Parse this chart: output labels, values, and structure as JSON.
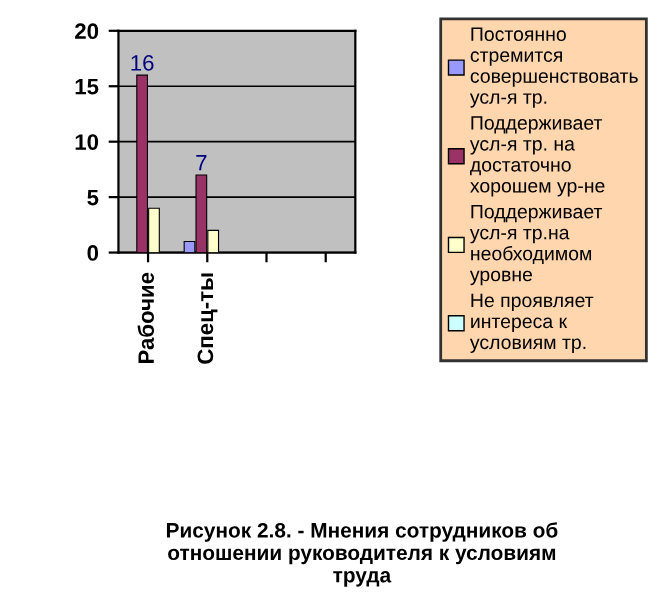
{
  "chart_data": {
    "type": "bar",
    "categories": [
      "Рабочие",
      "Спец-ты",
      null,
      null
    ],
    "series": [
      {
        "name": "Постоянно стремится совершенствовать усл-я тр.",
        "color": "#9999ff",
        "values": [
          0,
          1,
          null,
          null
        ]
      },
      {
        "name": "Поддерживает усл-я тр. на достаточно хорошем ур-не",
        "color": "#993366",
        "values": [
          16,
          7,
          null,
          null
        ],
        "value_labels": [
          "16",
          "7",
          null,
          null
        ]
      },
      {
        "name": "Поддерживает усл-я тр.на необходимом уровне",
        "color": "#ffffcc",
        "values": [
          4,
          2,
          null,
          null
        ]
      },
      {
        "name": "Не проявляет интереса к условиям тр.",
        "color": "#ccffff",
        "values": [
          0,
          0,
          null,
          null
        ]
      }
    ],
    "ylim": [
      0,
      20
    ],
    "yticks": [
      0,
      5,
      10,
      15,
      20
    ],
    "grid": "y",
    "legend": "right",
    "annotations": [
      "Рисунок 2.8. - Мнения сотрудников об отношении руководителя к условиям труда"
    ]
  }
}
